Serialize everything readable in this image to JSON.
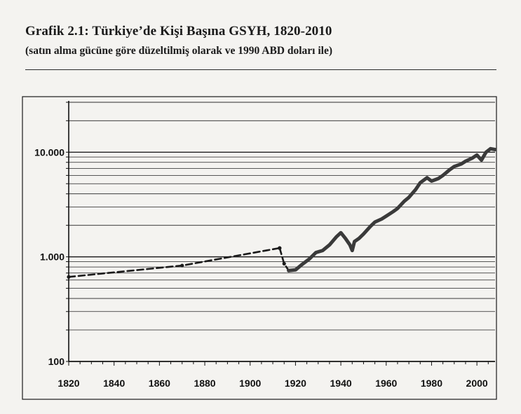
{
  "header": {
    "title": "Grafik 2.1: Türkiye’de Kişi Başına GSYH, 1820-2010",
    "subtitle": "(satın alma gücüne göre düzeltilmiş olarak ve 1990 ABD doları ile)"
  },
  "chart_data": {
    "type": "line",
    "title": "Grafik 2.1: Türkiye’de Kişi Başına GSYH, 1820-2010",
    "subtitle": "(satın alma gücüne göre düzeltilmiş olarak ve 1990 ABD doları ile)",
    "xlabel": "",
    "ylabel": "",
    "x_scale": "linear",
    "y_scale": "log",
    "xlim": [
      1820,
      2008
    ],
    "ylim": [
      100,
      30000
    ],
    "grid": true,
    "legend": "none",
    "x_ticks": [
      "1820",
      "1840",
      "1860",
      "1880",
      "1900",
      "1920",
      "1940",
      "1960",
      "1980",
      "2000"
    ],
    "y_ticks": [
      "100",
      "1.000",
      "10.000"
    ],
    "series": [
      {
        "style": "dashed",
        "color": "#1a1a1a",
        "x": [
          1820,
          1870,
          1913
        ],
        "y": [
          643,
          825,
          1213
        ]
      },
      {
        "style": "dashed",
        "color": "#1a1a1a",
        "x": [
          1913,
          1915,
          1917
        ],
        "y": [
          1213,
          860,
          740
        ]
      },
      {
        "style": "solid-thick",
        "color": "#3a3a3a",
        "x": [
          1917,
          1920,
          1923,
          1926,
          1929,
          1932,
          1935,
          1938,
          1940,
          1942,
          1944,
          1945,
          1946,
          1948,
          1950,
          1953,
          1955,
          1958,
          1960,
          1963,
          1965,
          1968,
          1970,
          1973,
          1975,
          1978,
          1980,
          1983,
          1985,
          1988,
          1990,
          1993,
          1995,
          1998,
          2000,
          2002,
          2004,
          2006,
          2008
        ],
        "y": [
          740,
          750,
          850,
          950,
          1100,
          1150,
          1300,
          1550,
          1700,
          1500,
          1300,
          1150,
          1400,
          1500,
          1650,
          1950,
          2150,
          2300,
          2450,
          2700,
          2900,
          3400,
          3700,
          4400,
          5100,
          5700,
          5300,
          5600,
          6000,
          6800,
          7300,
          7700,
          8200,
          8800,
          9400,
          8400,
          10000,
          10800,
          10600
        ]
      }
    ]
  }
}
